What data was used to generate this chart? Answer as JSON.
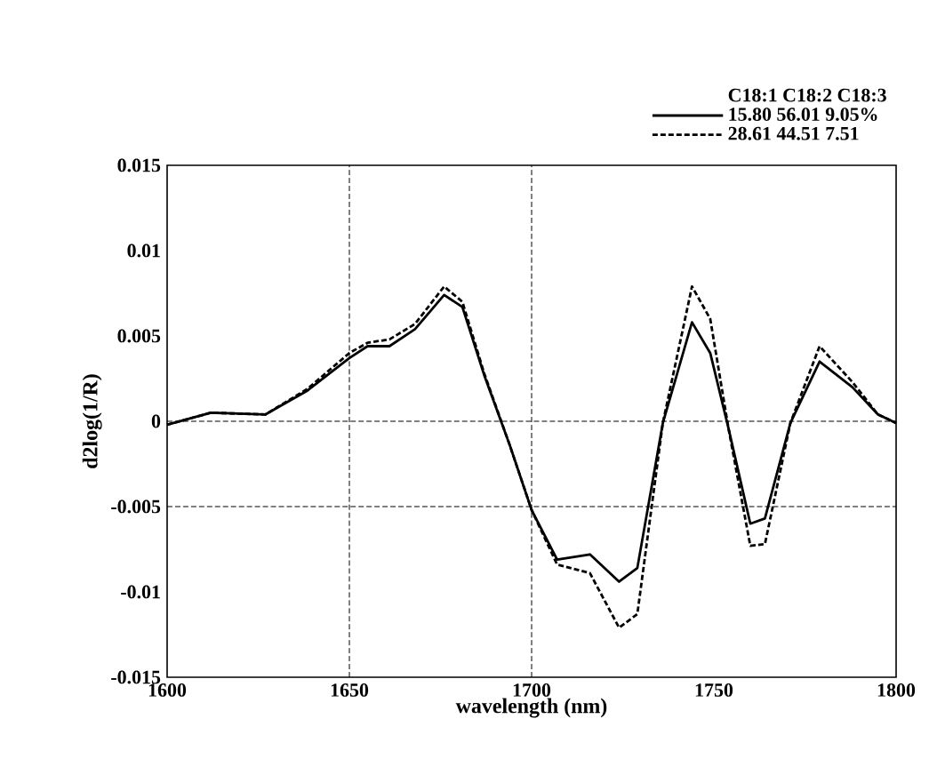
{
  "chart_data": {
    "type": "line",
    "xlabel": "wavelength (nm)",
    "ylabel": "d2log(1/R)",
    "legend_title": "C18:1 C18:2 C18:3",
    "legend": "top right",
    "grid": false,
    "marker": "none",
    "x": [
      1600,
      1612,
      1627,
      1638.5,
      1650,
      1655,
      1661,
      1668,
      1676,
      1681,
      1687,
      1694,
      1700,
      1707,
      1716,
      1724,
      1729,
      1736,
      1744,
      1749,
      1754,
      1760,
      1764,
      1771,
      1779,
      1788,
      1795,
      1800
    ],
    "series": [
      {
        "name": "15.80 56.01 9.05%",
        "color": "#000000",
        "line_style": "solid",
        "values": [
          -0.0002,
          0.0005,
          0.0004,
          0.0018,
          0.0037,
          0.0044,
          0.0044,
          0.0054,
          0.0074,
          0.0067,
          0.0027,
          -0.0014,
          -0.0052,
          -0.0081,
          -0.0078,
          -0.0094,
          -0.0086,
          -0.0001,
          0.0058,
          0.004,
          -0.0004,
          -0.006,
          -0.0057,
          -0.0001,
          0.0035,
          0.002,
          0.0004,
          -0.0001
        ]
      },
      {
        "name": "28.61 44.51 7.51",
        "color": "#000000",
        "line_style": "dashed",
        "values": [
          -0.0002,
          0.0005,
          0.0004,
          0.0019,
          0.004,
          0.0046,
          0.0048,
          0.0057,
          0.0079,
          0.007,
          0.0028,
          -0.0014,
          -0.0052,
          -0.0084,
          -0.0089,
          -0.0121,
          -0.0113,
          -0.0001,
          0.0079,
          0.006,
          -0.0004,
          -0.0073,
          -0.0072,
          -0.0001,
          0.0044,
          0.0023,
          0.0004,
          -0.0001
        ]
      }
    ],
    "xlim": [
      1600,
      1800
    ],
    "xticks": [
      1600,
      1650,
      1700,
      1750,
      1800
    ],
    "ylim": [
      -0.015,
      0.015
    ],
    "yticks": [
      -0.015,
      -0.01,
      -0.005,
      0,
      0.005,
      0.01,
      0.015
    ],
    "ref_lines": [
      {
        "axis": "x",
        "value": 1650,
        "line_style": "dashed",
        "color": "#000000"
      },
      {
        "axis": "x",
        "value": 1700,
        "line_style": "dashed",
        "color": "#000000"
      },
      {
        "axis": "y",
        "value": 0,
        "line_style": "dashed",
        "color": "#000000"
      },
      {
        "axis": "y",
        "value": -0.005,
        "line_style": "dashed",
        "color": "#000000"
      }
    ]
  }
}
